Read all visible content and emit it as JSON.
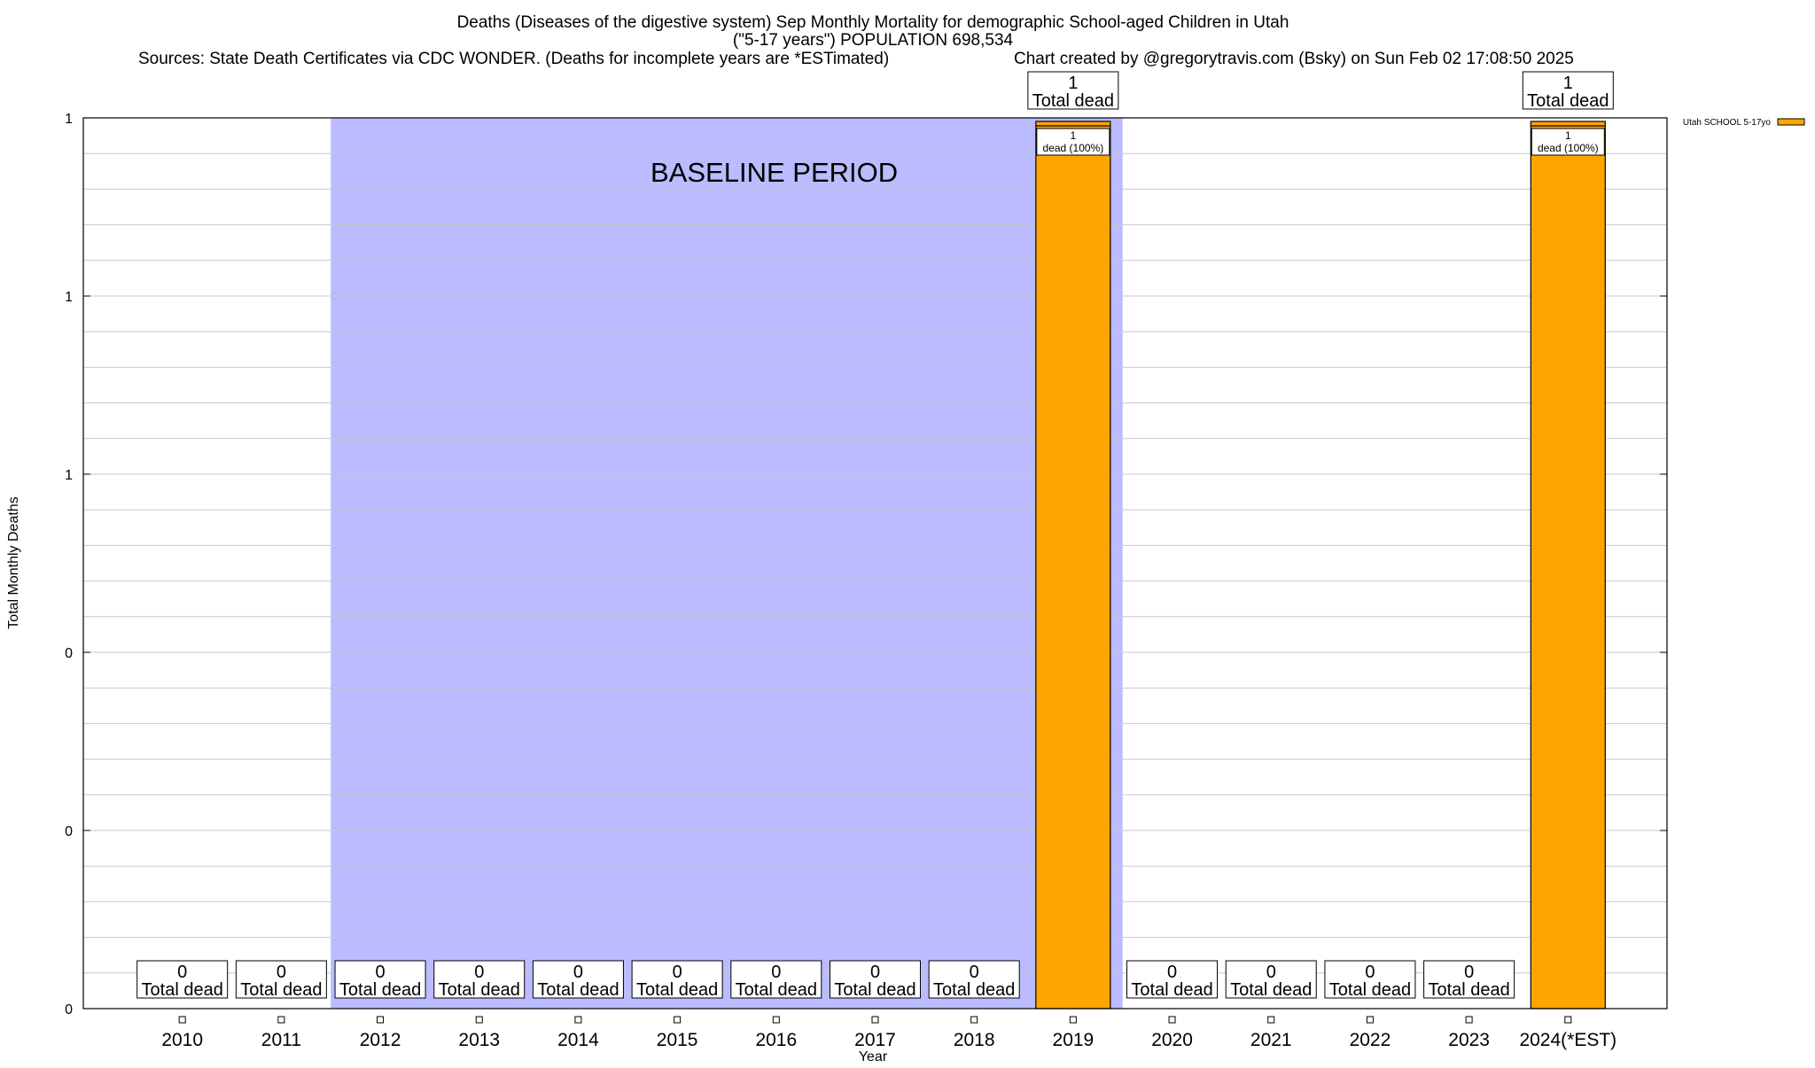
{
  "chart_data": {
    "type": "bar",
    "title_lines": [
      "Deaths (Diseases of the digestive system) Sep Monthly Mortality for demographic School-aged Children in Utah",
      "(\"5-17 years\") POPULATION 698,534"
    ],
    "sources": "Sources: State Death Certificates via CDC WONDER. (Deaths for incomplete years are *ESTimated)",
    "credit": "Chart created by @gregorytravis.com (Bsky) on Sun Feb 02 17:08:50 2025",
    "xlabel": "Year",
    "ylabel": "Total Monthly Deaths",
    "ylim": [
      0,
      1
    ],
    "ytick_labels": [
      "0",
      "0",
      "0",
      "1",
      "1",
      "1"
    ],
    "categories": [
      "2010",
      "2011",
      "2012",
      "2013",
      "2014",
      "2015",
      "2016",
      "2017",
      "2018",
      "2019",
      "2020",
      "2021",
      "2022",
      "2023",
      "2024(*EST)"
    ],
    "series": [
      {
        "name": "Utah SCHOOL 5-17yo",
        "color": "#FFA500",
        "values": [
          0,
          0,
          0,
          0,
          0,
          0,
          0,
          0,
          0,
          1,
          0,
          0,
          0,
          0,
          1
        ]
      }
    ],
    "total_label_suffix": "Total dead",
    "segment_labels": [
      {
        "category": "2019",
        "count": "1",
        "text": "dead (100%)"
      },
      {
        "category": "2024(*EST)",
        "count": "1",
        "text": "dead (100%)"
      }
    ],
    "baseline": {
      "label": "BASELINE PERIOD",
      "start": "2012",
      "end": "2019",
      "color": "#BBBBFF"
    },
    "grid": true,
    "legend_position": "top-right"
  }
}
